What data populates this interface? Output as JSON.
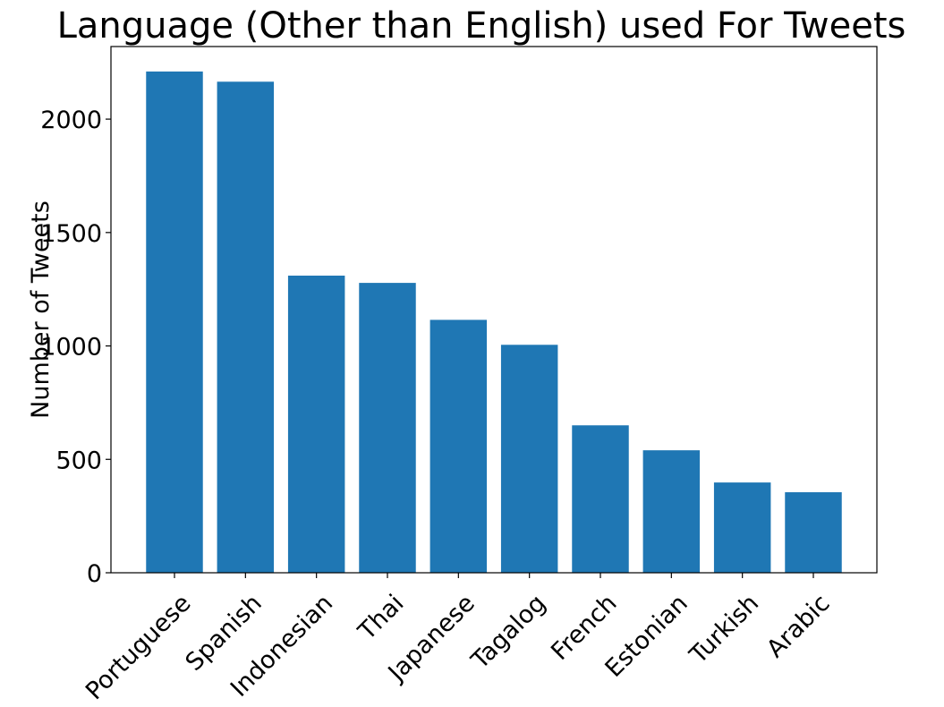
{
  "chart_data": {
    "type": "bar",
    "title": "Language (Other than English) used For Tweets",
    "xlabel": "",
    "ylabel": "Number of Tweets",
    "categories": [
      "Portuguese",
      "Spanish",
      "Indonesian",
      "Thai",
      "Japanese",
      "Tagalog",
      "French",
      "Estonian",
      "Turkish",
      "Arabic"
    ],
    "values": [
      2210,
      2165,
      1310,
      1278,
      1115,
      1005,
      650,
      540,
      398,
      355
    ],
    "ylim": [
      0,
      2320
    ],
    "yticks": [
      0,
      500,
      1000,
      1500,
      2000
    ],
    "grid": false,
    "bar_color": "#1f77b4"
  }
}
